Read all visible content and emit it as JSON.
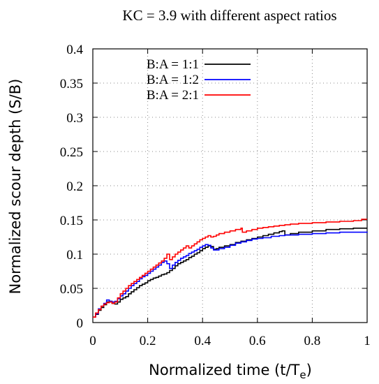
{
  "chart_data": {
    "type": "line",
    "title": "KC = 3.9 with different aspect ratios",
    "xlabel": "Normalized time (t/T",
    "xlabel_sub": "e",
    "xlabel_tail": ")",
    "ylabel": "Normalized scour depth (S/B)",
    "xlim": [
      0,
      1
    ],
    "ylim": [
      0,
      0.4
    ],
    "x_ticks": [
      0,
      0.2,
      0.4,
      0.6,
      0.8,
      1
    ],
    "x_tick_labels": [
      "0",
      "0.2",
      "0.4",
      "0.6",
      "0.8",
      "1"
    ],
    "y_ticks": [
      0,
      0.05,
      0.1,
      0.15,
      0.2,
      0.25,
      0.3,
      0.35,
      0.4
    ],
    "y_tick_labels": [
      "0",
      "0.05",
      "0.1",
      "0.15",
      "0.2",
      "0.25",
      "0.3",
      "0.35",
      "0.4"
    ],
    "grid": true,
    "legend_position": "top-center",
    "series": [
      {
        "name": "B:A = 1:1",
        "color": "#000000",
        "points": [
          [
            0,
            0.008
          ],
          [
            0.01,
            0.012
          ],
          [
            0.02,
            0.018
          ],
          [
            0.03,
            0.022
          ],
          [
            0.04,
            0.026
          ],
          [
            0.05,
            0.03
          ],
          [
            0.06,
            0.031
          ],
          [
            0.07,
            0.028
          ],
          [
            0.08,
            0.027
          ],
          [
            0.09,
            0.03
          ],
          [
            0.1,
            0.034
          ],
          [
            0.11,
            0.036
          ],
          [
            0.12,
            0.038
          ],
          [
            0.13,
            0.042
          ],
          [
            0.14,
            0.045
          ],
          [
            0.15,
            0.048
          ],
          [
            0.16,
            0.051
          ],
          [
            0.17,
            0.054
          ],
          [
            0.18,
            0.056
          ],
          [
            0.19,
            0.058
          ],
          [
            0.2,
            0.061
          ],
          [
            0.21,
            0.063
          ],
          [
            0.22,
            0.065
          ],
          [
            0.23,
            0.066
          ],
          [
            0.24,
            0.068
          ],
          [
            0.25,
            0.07
          ],
          [
            0.26,
            0.071
          ],
          [
            0.27,
            0.073
          ],
          [
            0.28,
            0.076
          ],
          [
            0.29,
            0.079
          ],
          [
            0.3,
            0.083
          ],
          [
            0.31,
            0.086
          ],
          [
            0.32,
            0.088
          ],
          [
            0.33,
            0.09
          ],
          [
            0.34,
            0.092
          ],
          [
            0.35,
            0.095
          ],
          [
            0.36,
            0.097
          ],
          [
            0.37,
            0.1
          ],
          [
            0.38,
            0.102
          ],
          [
            0.39,
            0.105
          ],
          [
            0.4,
            0.108
          ],
          [
            0.41,
            0.11
          ],
          [
            0.42,
            0.112
          ],
          [
            0.43,
            0.111
          ],
          [
            0.44,
            0.107
          ],
          [
            0.45,
            0.108
          ],
          [
            0.46,
            0.11
          ],
          [
            0.48,
            0.112
          ],
          [
            0.5,
            0.114
          ],
          [
            0.52,
            0.117
          ],
          [
            0.54,
            0.119
          ],
          [
            0.56,
            0.121
          ],
          [
            0.58,
            0.123
          ],
          [
            0.6,
            0.125
          ],
          [
            0.62,
            0.127
          ],
          [
            0.64,
            0.129
          ],
          [
            0.66,
            0.131
          ],
          [
            0.68,
            0.133
          ],
          [
            0.69,
            0.134
          ],
          [
            0.7,
            0.128
          ],
          [
            0.72,
            0.13
          ],
          [
            0.75,
            0.132
          ],
          [
            0.8,
            0.134
          ],
          [
            0.85,
            0.136
          ],
          [
            0.9,
            0.137
          ],
          [
            0.95,
            0.138
          ],
          [
            1,
            0.138
          ]
        ]
      },
      {
        "name": "B:A = 1:2",
        "color": "#0000ff",
        "points": [
          [
            0,
            0.008
          ],
          [
            0.01,
            0.013
          ],
          [
            0.02,
            0.02
          ],
          [
            0.03,
            0.024
          ],
          [
            0.04,
            0.028
          ],
          [
            0.05,
            0.033
          ],
          [
            0.06,
            0.031
          ],
          [
            0.07,
            0.03
          ],
          [
            0.08,
            0.031
          ],
          [
            0.09,
            0.035
          ],
          [
            0.1,
            0.039
          ],
          [
            0.11,
            0.042
          ],
          [
            0.12,
            0.046
          ],
          [
            0.13,
            0.05
          ],
          [
            0.14,
            0.054
          ],
          [
            0.15,
            0.057
          ],
          [
            0.16,
            0.06
          ],
          [
            0.17,
            0.064
          ],
          [
            0.18,
            0.067
          ],
          [
            0.19,
            0.069
          ],
          [
            0.2,
            0.072
          ],
          [
            0.21,
            0.075
          ],
          [
            0.22,
            0.078
          ],
          [
            0.23,
            0.081
          ],
          [
            0.24,
            0.084
          ],
          [
            0.25,
            0.088
          ],
          [
            0.26,
            0.09
          ],
          [
            0.27,
            0.086
          ],
          [
            0.28,
            0.079
          ],
          [
            0.29,
            0.084
          ],
          [
            0.3,
            0.088
          ],
          [
            0.31,
            0.091
          ],
          [
            0.32,
            0.094
          ],
          [
            0.33,
            0.096
          ],
          [
            0.34,
            0.098
          ],
          [
            0.35,
            0.101
          ],
          [
            0.36,
            0.103
          ],
          [
            0.37,
            0.105
          ],
          [
            0.38,
            0.107
          ],
          [
            0.39,
            0.11
          ],
          [
            0.4,
            0.112
          ],
          [
            0.41,
            0.114
          ],
          [
            0.42,
            0.113
          ],
          [
            0.43,
            0.109
          ],
          [
            0.44,
            0.106
          ],
          [
            0.46,
            0.108
          ],
          [
            0.48,
            0.11
          ],
          [
            0.5,
            0.113
          ],
          [
            0.52,
            0.116
          ],
          [
            0.54,
            0.118
          ],
          [
            0.56,
            0.12
          ],
          [
            0.58,
            0.122
          ],
          [
            0.6,
            0.123
          ],
          [
            0.62,
            0.124
          ],
          [
            0.65,
            0.126
          ],
          [
            0.68,
            0.127
          ],
          [
            0.7,
            0.128
          ],
          [
            0.75,
            0.129
          ],
          [
            0.8,
            0.13
          ],
          [
            0.85,
            0.131
          ],
          [
            0.9,
            0.132
          ],
          [
            0.95,
            0.132
          ],
          [
            1,
            0.133
          ]
        ]
      },
      {
        "name": "B:A = 2:1",
        "color": "#ff0000",
        "points": [
          [
            0,
            0.008
          ],
          [
            0.01,
            0.014
          ],
          [
            0.02,
            0.019
          ],
          [
            0.03,
            0.024
          ],
          [
            0.04,
            0.027
          ],
          [
            0.05,
            0.029
          ],
          [
            0.06,
            0.03
          ],
          [
            0.07,
            0.028
          ],
          [
            0.08,
            0.03
          ],
          [
            0.09,
            0.036
          ],
          [
            0.1,
            0.042
          ],
          [
            0.11,
            0.046
          ],
          [
            0.12,
            0.05
          ],
          [
            0.13,
            0.054
          ],
          [
            0.14,
            0.057
          ],
          [
            0.15,
            0.06
          ],
          [
            0.16,
            0.063
          ],
          [
            0.17,
            0.066
          ],
          [
            0.18,
            0.069
          ],
          [
            0.19,
            0.072
          ],
          [
            0.2,
            0.075
          ],
          [
            0.21,
            0.078
          ],
          [
            0.22,
            0.081
          ],
          [
            0.23,
            0.084
          ],
          [
            0.24,
            0.087
          ],
          [
            0.25,
            0.09
          ],
          [
            0.26,
            0.094
          ],
          [
            0.27,
            0.1
          ],
          [
            0.28,
            0.092
          ],
          [
            0.29,
            0.096
          ],
          [
            0.3,
            0.1
          ],
          [
            0.31,
            0.103
          ],
          [
            0.32,
            0.106
          ],
          [
            0.33,
            0.109
          ],
          [
            0.34,
            0.112
          ],
          [
            0.35,
            0.109
          ],
          [
            0.36,
            0.112
          ],
          [
            0.37,
            0.115
          ],
          [
            0.38,
            0.118
          ],
          [
            0.39,
            0.121
          ],
          [
            0.4,
            0.123
          ],
          [
            0.41,
            0.125
          ],
          [
            0.42,
            0.127
          ],
          [
            0.43,
            0.125
          ],
          [
            0.44,
            0.126
          ],
          [
            0.45,
            0.128
          ],
          [
            0.46,
            0.13
          ],
          [
            0.48,
            0.132
          ],
          [
            0.5,
            0.134
          ],
          [
            0.52,
            0.136
          ],
          [
            0.54,
            0.138
          ],
          [
            0.545,
            0.132
          ],
          [
            0.56,
            0.134
          ],
          [
            0.58,
            0.136
          ],
          [
            0.6,
            0.138
          ],
          [
            0.62,
            0.139
          ],
          [
            0.64,
            0.14
          ],
          [
            0.66,
            0.141
          ],
          [
            0.68,
            0.142
          ],
          [
            0.7,
            0.143
          ],
          [
            0.72,
            0.144
          ],
          [
            0.75,
            0.145
          ],
          [
            0.8,
            0.146
          ],
          [
            0.85,
            0.147
          ],
          [
            0.9,
            0.148
          ],
          [
            0.95,
            0.149
          ],
          [
            0.98,
            0.151
          ],
          [
            1,
            0.151
          ]
        ]
      }
    ]
  }
}
